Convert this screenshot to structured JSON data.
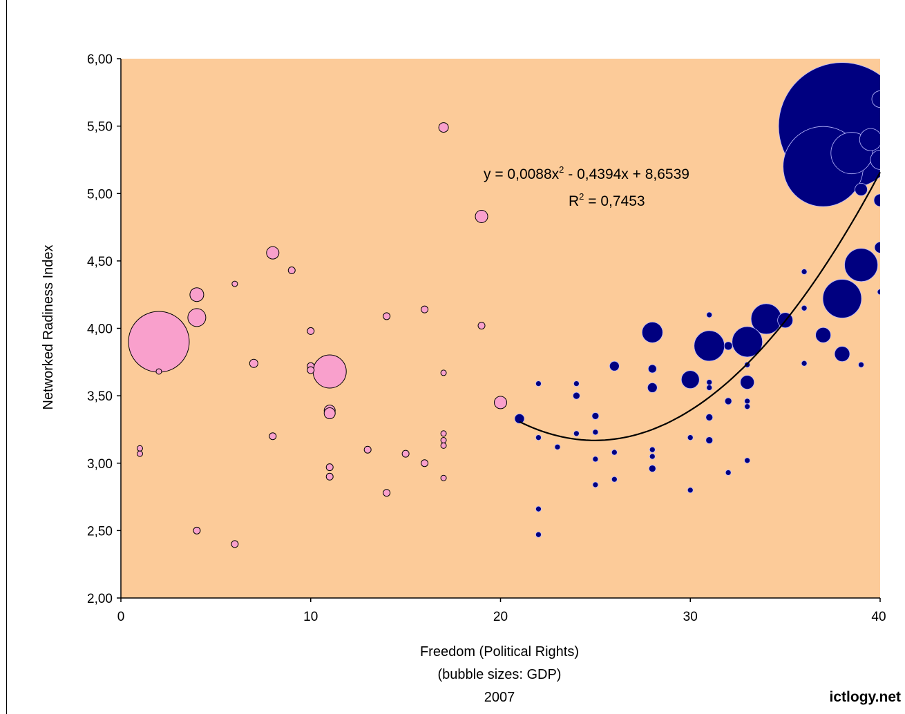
{
  "chart_data": {
    "type": "bubble",
    "xlabel": "Freedom (Political Rights)",
    "xlabel_line2": "(bubble sizes: GDP)",
    "xlabel_line3": "2007",
    "ylabel": "Networked Radiness Index",
    "xlim": [
      0,
      40
    ],
    "ylim": [
      2.0,
      6.0
    ],
    "x_ticks": [
      "0",
      "10",
      "20",
      "30",
      "40"
    ],
    "y_ticks": [
      "2,00",
      "2,50",
      "3,00",
      "3,50",
      "4,00",
      "4,50",
      "5,00",
      "5,50",
      "6,00"
    ],
    "plot_background": "#fccb99",
    "trendline": {
      "equation_lhs": "y = 0,0088x",
      "equation_rhs": " - 0,4394x + 8,6539",
      "r2_lhs": "R",
      "r2_rhs": " = 0,7453",
      "coefficients": [
        0.0088,
        -0.4394,
        8.6539
      ],
      "x_range": [
        21,
        40
      ],
      "color": "#000000"
    },
    "series": [
      {
        "color": "#f9a0cc",
        "points": [
          {
            "x": 2,
            "y": 3.9,
            "size": 44
          },
          {
            "x": 2,
            "y": 3.68,
            "size": 4
          },
          {
            "x": 1,
            "y": 3.11,
            "size": 4
          },
          {
            "x": 1,
            "y": 3.07,
            "size": 4
          },
          {
            "x": 4,
            "y": 4.25,
            "size": 10
          },
          {
            "x": 4,
            "y": 4.08,
            "size": 13
          },
          {
            "x": 4,
            "y": 2.5,
            "size": 5
          },
          {
            "x": 6,
            "y": 4.33,
            "size": 4
          },
          {
            "x": 6,
            "y": 2.4,
            "size": 5
          },
          {
            "x": 7,
            "y": 3.74,
            "size": 6
          },
          {
            "x": 8,
            "y": 4.56,
            "size": 9
          },
          {
            "x": 8,
            "y": 3.2,
            "size": 5
          },
          {
            "x": 9,
            "y": 4.43,
            "size": 5
          },
          {
            "x": 10,
            "y": 3.98,
            "size": 5
          },
          {
            "x": 10,
            "y": 3.72,
            "size": 5
          },
          {
            "x": 10,
            "y": 3.69,
            "size": 5
          },
          {
            "x": 11,
            "y": 3.68,
            "size": 24
          },
          {
            "x": 11,
            "y": 3.39,
            "size": 8
          },
          {
            "x": 11,
            "y": 3.37,
            "size": 8
          },
          {
            "x": 11,
            "y": 2.97,
            "size": 5
          },
          {
            "x": 11,
            "y": 2.9,
            "size": 5
          },
          {
            "x": 13,
            "y": 3.1,
            "size": 5
          },
          {
            "x": 14,
            "y": 4.09,
            "size": 5
          },
          {
            "x": 14,
            "y": 2.78,
            "size": 5
          },
          {
            "x": 15,
            "y": 3.07,
            "size": 5
          },
          {
            "x": 16,
            "y": 4.14,
            "size": 5
          },
          {
            "x": 16,
            "y": 3.0,
            "size": 5
          },
          {
            "x": 17,
            "y": 5.49,
            "size": 7
          },
          {
            "x": 17,
            "y": 3.67,
            "size": 4
          },
          {
            "x": 17,
            "y": 3.22,
            "size": 4
          },
          {
            "x": 17,
            "y": 3.17,
            "size": 4
          },
          {
            "x": 17,
            "y": 3.13,
            "size": 4
          },
          {
            "x": 17,
            "y": 2.89,
            "size": 4
          },
          {
            "x": 19,
            "y": 4.83,
            "size": 9
          },
          {
            "x": 19,
            "y": 4.02,
            "size": 5
          },
          {
            "x": 20,
            "y": 3.45,
            "size": 9
          }
        ]
      },
      {
        "color": "#000080",
        "points": [
          {
            "x": 38,
            "y": 5.5,
            "size": 92
          },
          {
            "x": 37,
            "y": 5.2,
            "size": 58
          },
          {
            "x": 38.5,
            "y": 5.3,
            "size": 30
          },
          {
            "x": 39.5,
            "y": 5.4,
            "size": 16
          },
          {
            "x": 40,
            "y": 5.7,
            "size": 12
          },
          {
            "x": 40,
            "y": 5.25,
            "size": 14
          },
          {
            "x": 39,
            "y": 5.03,
            "size": 9
          },
          {
            "x": 40,
            "y": 4.95,
            "size": 9
          },
          {
            "x": 40,
            "y": 4.6,
            "size": 8
          },
          {
            "x": 39,
            "y": 4.47,
            "size": 24
          },
          {
            "x": 38,
            "y": 4.22,
            "size": 28
          },
          {
            "x": 40,
            "y": 4.27,
            "size": 4
          },
          {
            "x": 38,
            "y": 3.81,
            "size": 11
          },
          {
            "x": 37,
            "y": 3.95,
            "size": 11
          },
          {
            "x": 39,
            "y": 3.73,
            "size": 4
          },
          {
            "x": 36,
            "y": 4.42,
            "size": 4
          },
          {
            "x": 36,
            "y": 4.15,
            "size": 4
          },
          {
            "x": 36,
            "y": 3.74,
            "size": 4
          },
          {
            "x": 35,
            "y": 4.06,
            "size": 11
          },
          {
            "x": 34,
            "y": 4.07,
            "size": 22
          },
          {
            "x": 33,
            "y": 3.9,
            "size": 22
          },
          {
            "x": 31,
            "y": 3.87,
            "size": 22
          },
          {
            "x": 28,
            "y": 3.97,
            "size": 15
          },
          {
            "x": 30,
            "y": 3.62,
            "size": 13
          },
          {
            "x": 33,
            "y": 3.6,
            "size": 10
          },
          {
            "x": 32,
            "y": 3.87,
            "size": 6
          },
          {
            "x": 31,
            "y": 4.1,
            "size": 4
          },
          {
            "x": 33,
            "y": 3.73,
            "size": 4
          },
          {
            "x": 31,
            "y": 3.6,
            "size": 4
          },
          {
            "x": 31,
            "y": 3.56,
            "size": 4
          },
          {
            "x": 32,
            "y": 3.46,
            "size": 5
          },
          {
            "x": 33,
            "y": 3.46,
            "size": 4
          },
          {
            "x": 33,
            "y": 3.42,
            "size": 4
          },
          {
            "x": 31,
            "y": 3.34,
            "size": 5
          },
          {
            "x": 31,
            "y": 3.17,
            "size": 5
          },
          {
            "x": 30,
            "y": 3.19,
            "size": 4
          },
          {
            "x": 32,
            "y": 2.93,
            "size": 4
          },
          {
            "x": 33,
            "y": 3.02,
            "size": 4
          },
          {
            "x": 30,
            "y": 2.8,
            "size": 4
          },
          {
            "x": 28,
            "y": 3.7,
            "size": 6
          },
          {
            "x": 28,
            "y": 3.56,
            "size": 7
          },
          {
            "x": 28,
            "y": 3.1,
            "size": 4
          },
          {
            "x": 28,
            "y": 3.05,
            "size": 4
          },
          {
            "x": 28,
            "y": 2.96,
            "size": 5
          },
          {
            "x": 26,
            "y": 3.72,
            "size": 7
          },
          {
            "x": 26,
            "y": 3.08,
            "size": 4
          },
          {
            "x": 26,
            "y": 2.88,
            "size": 4
          },
          {
            "x": 25,
            "y": 3.35,
            "size": 5
          },
          {
            "x": 25,
            "y": 3.23,
            "size": 4
          },
          {
            "x": 25,
            "y": 3.03,
            "size": 4
          },
          {
            "x": 25,
            "y": 2.84,
            "size": 4
          },
          {
            "x": 24,
            "y": 3.59,
            "size": 4
          },
          {
            "x": 24,
            "y": 3.5,
            "size": 5
          },
          {
            "x": 24,
            "y": 3.22,
            "size": 4
          },
          {
            "x": 23,
            "y": 3.12,
            "size": 4
          },
          {
            "x": 22,
            "y": 3.59,
            "size": 4
          },
          {
            "x": 22,
            "y": 3.19,
            "size": 4
          },
          {
            "x": 22,
            "y": 2.66,
            "size": 4
          },
          {
            "x": 22,
            "y": 2.47,
            "size": 4
          },
          {
            "x": 21,
            "y": 3.33,
            "size": 7
          }
        ]
      }
    ]
  },
  "footer": {
    "credit": "ictlogy.net"
  }
}
